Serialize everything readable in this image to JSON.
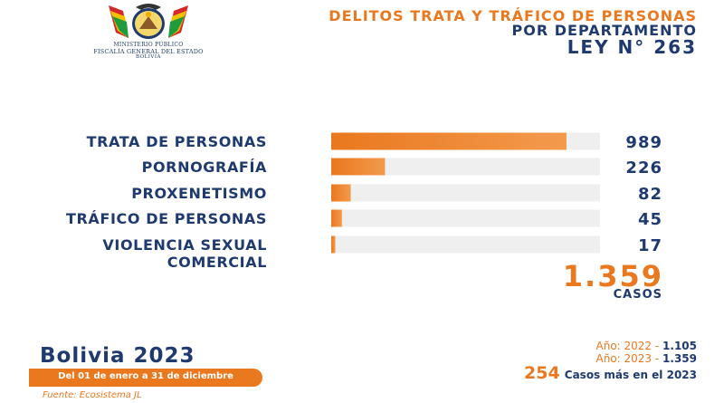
{
  "header": {
    "logo": {
      "line1": "MINISTERIO PÚBLICO",
      "line2": "FISCALÍA GENERAL DEL ESTADO",
      "line3": "BOLIVIA"
    },
    "title_line1": "DELITOS TRATA Y TRÁFICO DE PERSONAS",
    "title_line2": "POR DEPARTAMENTO",
    "title_line3": "LEY N° 263"
  },
  "chart_data": {
    "type": "bar",
    "orientation": "horizontal",
    "categories": [
      "TRATA DE PERSONAS",
      "PORNOGRAFÍA",
      "PROXENETISMO",
      "TRÁFICO DE PERSONAS",
      "VIOLENCIA SEXUAL COMERCIAL"
    ],
    "category_lines": [
      [
        "TRATA DE PERSONAS"
      ],
      [
        "PORNOGRAFÍA"
      ],
      [
        "PROXENETISMO"
      ],
      [
        "TRÁFICO DE PERSONAS"
      ],
      [
        "VIOLENCIA SEXUAL",
        "COMERCIAL"
      ]
    ],
    "values": [
      989,
      226,
      82,
      45,
      17
    ],
    "xlim": [
      0,
      1130
    ],
    "grid": false,
    "colors": {
      "bar_start": "#e9781f",
      "bar_end": "#f39a4d",
      "track": "#efefef",
      "text": "#1f3a6e"
    }
  },
  "total": {
    "value": "1.359",
    "unit": "CASOS"
  },
  "footer": {
    "country_year": "Bolivia 2023",
    "period": "Del 01 de enero a 31 de diciembre",
    "source": "Fuente: Ecosistema JL",
    "year_2022_label": "Año: 2022 - ",
    "year_2022_value": "1.105",
    "year_2023_label": "Año: 2023 - ",
    "year_2023_value": "1.359",
    "difference_value": "254",
    "difference_text": "Casos más en el 2023"
  },
  "colors": {
    "orange": "#e9781f",
    "navy": "#1f3a6e"
  }
}
